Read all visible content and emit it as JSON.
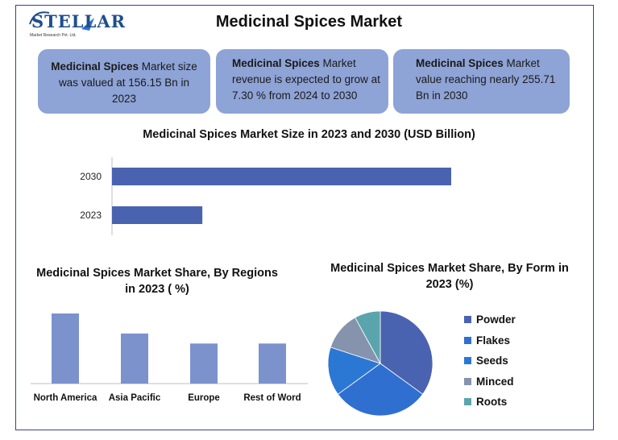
{
  "header": {
    "title": "Medicinal Spices Market",
    "logo_text": "STELLAR",
    "logo_subtext": "Market Research Pvt. Ltd."
  },
  "info_boxes": [
    {
      "bold": "Medicinal Spices",
      "text": " Market size was valued at 156.15 Bn in 2023"
    },
    {
      "bold": "Medicinal Spices",
      "text": " Market revenue is expected to grow at 7.30 % from 2024 to 2030"
    },
    {
      "bold": "Medicinal Spices",
      "text": " Market value reaching nearly 255.71 Bn in 2030"
    }
  ],
  "colors": {
    "box_bg": "#8ea3d6",
    "bar_blue": "#4a63b0",
    "region_bar": "#7b92cd",
    "frame": "#3a3f8f"
  },
  "chart_data": [
    {
      "type": "bar",
      "orientation": "horizontal",
      "title": "Medicinal Spices Market Size in 2023 and 2030 (USD Billion)",
      "categories": [
        "2030",
        "2023"
      ],
      "values": [
        255.71,
        156.15
      ],
      "xlim": [
        120,
        270
      ],
      "grid": false,
      "axis_labels": false
    },
    {
      "type": "bar",
      "title": "Medicinal Spices Market Share, By Regions in 2023 ( %)",
      "categories": [
        "North America",
        "Asia Pacific",
        "Europe",
        "Rest of Word"
      ],
      "values": [
        35,
        25,
        20,
        20
      ],
      "ylim": [
        0,
        40
      ],
      "grid": false
    },
    {
      "type": "pie",
      "title": "Medicinal Spices Market Share, By Form in 2023 (%)",
      "legend_position": "right",
      "slices": [
        {
          "label": "Powder",
          "value": 35,
          "color": "#4a63b0"
        },
        {
          "label": "Flakes",
          "value": 30,
          "color": "#2f6fd0"
        },
        {
          "label": "Seeds",
          "value": 15,
          "color": "#2b78d4"
        },
        {
          "label": "Minced",
          "value": 12,
          "color": "#8693ad"
        },
        {
          "label": "Roots",
          "value": 8,
          "color": "#5aa5ad"
        }
      ]
    }
  ]
}
